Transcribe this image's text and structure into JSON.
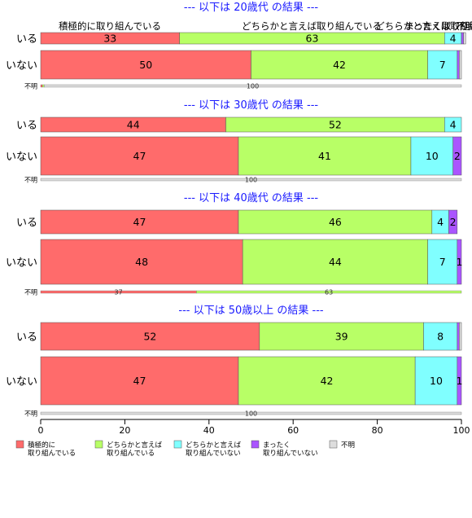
{
  "chart_data": {
    "type": "bar",
    "orientation": "horizontal",
    "stacked": true,
    "percent": true,
    "xlim": [
      0,
      100
    ],
    "x_ticks": [
      "0",
      "20",
      "40",
      "60",
      "80",
      "100"
    ],
    "colors": [
      "#ff6b6b",
      "#b8ff66",
      "#80ffff",
      "#aa55ff",
      "#dddddd"
    ],
    "legend": {
      "position": "bottom",
      "items": [
        [
          "積極的に",
          "取り組んでいる"
        ],
        [
          "どちらかと言えば",
          "取り組んでいる"
        ],
        [
          "どちらかと言えば",
          "取り組んでいない"
        ],
        [
          "まったく",
          "取り組んでいない"
        ],
        [
          "不明"
        ]
      ]
    },
    "top_header_labels": [
      "積極的に取り組んでいる",
      "どちらかと言えば取り組んでいる",
      "どちらかと言えば取り組んでいない",
      "まったく取り組んでいない",
      "不明"
    ],
    "panels": [
      {
        "title": "--- 以下は 20歳代 の結果 ---",
        "rows": [
          {
            "label": "いる",
            "values": [
              33,
              63,
              4,
              0.5,
              0.5
            ],
            "labels": [
              "33",
              "63",
              "4",
              "",
              ""
            ]
          },
          {
            "label": "いない",
            "values": [
              50,
              42,
              7,
              0.5,
              0.5
            ],
            "labels": [
              "50",
              "42",
              "7",
              "",
              ""
            ]
          },
          {
            "label": "不明",
            "values": [
              0.4,
              0.4,
              0,
              0,
              99.2
            ],
            "labels": [
              "",
              "",
              "",
              "",
              "100"
            ]
          }
        ]
      },
      {
        "title": "--- 以下は 30歳代 の結果 ---",
        "rows": [
          {
            "label": "いる",
            "values": [
              44,
              52,
              4,
              0,
              0
            ],
            "labels": [
              "44",
              "52",
              "4",
              "",
              ""
            ]
          },
          {
            "label": "いない",
            "values": [
              47,
              41,
              10,
              2,
              0
            ],
            "labels": [
              "47",
              "41",
              "10",
              "2",
              ""
            ]
          },
          {
            "label": "不明",
            "values": [
              0,
              0,
              0,
              0,
              100
            ],
            "labels": [
              "",
              "",
              "",
              "",
              "100"
            ]
          }
        ]
      },
      {
        "title": "--- 以下は 40歳代 の結果 ---",
        "rows": [
          {
            "label": "いる",
            "values": [
              47,
              46,
              4,
              2,
              0
            ],
            "labels": [
              "47",
              "46",
              "4",
              "2",
              ""
            ]
          },
          {
            "label": "いない",
            "values": [
              48,
              44,
              7,
              1,
              0
            ],
            "labels": [
              "48",
              "44",
              "7",
              "1",
              ""
            ]
          },
          {
            "label": "不明",
            "values": [
              37,
              63,
              0,
              0,
              0
            ],
            "labels": [
              "37",
              "63",
              "",
              "",
              ""
            ]
          }
        ]
      },
      {
        "title": "--- 以下は 50歳以上 の結果 ---",
        "rows": [
          {
            "label": "いる",
            "values": [
              52,
              39,
              8,
              0.5,
              0.5
            ],
            "labels": [
              "52",
              "39",
              "8",
              "",
              ""
            ]
          },
          {
            "label": "いない",
            "values": [
              47,
              42,
              10,
              1,
              0
            ],
            "labels": [
              "47",
              "42",
              "10",
              "1",
              ""
            ]
          },
          {
            "label": "不明",
            "values": [
              0,
              0,
              0,
              0,
              100
            ],
            "labels": [
              "",
              "",
              "",
              "",
              "100"
            ]
          }
        ]
      }
    ]
  }
}
